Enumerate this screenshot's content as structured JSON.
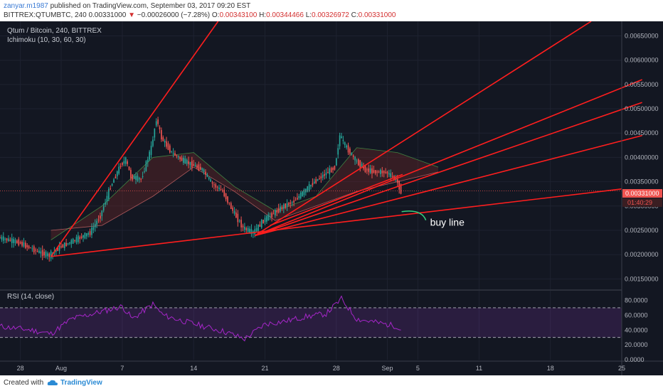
{
  "header": {
    "author": "zanyar.m1987",
    "published": "published on TradingView.com, September 03, 2017 09:20 EST",
    "symbol_line": "BITTREX:QTUMBTC, 240",
    "last": "0.00331000",
    "change": "−0.00026000 (−7.28%)",
    "o_label": "O:",
    "o": "0.00343100",
    "h_label": "H:",
    "h": "0.00344466",
    "l_label": "L:",
    "l": "0.00326972",
    "c_label": "C:",
    "c": "0.00331000"
  },
  "footer": {
    "created": "Created with",
    "brand": "TradingView"
  },
  "colors": {
    "bg": "#131722",
    "grid": "#1e2230",
    "trend": "#ff1e1e",
    "up": "#26a69a",
    "down": "#ef5350",
    "rsi": "#a626c9"
  },
  "chart_data": [
    {
      "type": "candlestick",
      "title": "Qtum / Bitcoin, 240, BITTREX",
      "indicator": "Ichimoku (10, 30, 60, 30)",
      "x_tick_labels": [
        "28",
        "Aug",
        "7",
        "14",
        "21",
        "28",
        "Sep",
        "5",
        "11",
        "18",
        "25"
      ],
      "x_tick_days": [
        -3,
        1,
        7,
        14,
        21,
        28,
        33,
        36,
        42,
        49,
        56
      ],
      "x_range_days": [
        -5,
        56
      ],
      "y_tick_labels": [
        "0.00650000",
        "0.00600000",
        "0.00550000",
        "0.00500000",
        "0.00450000",
        "0.00400000",
        "0.00350000",
        "0.00300000",
        "0.00250000",
        "0.00200000",
        "0.00150000"
      ],
      "ylim": [
        0.0013,
        0.0068
      ],
      "last_price": "0.00331000",
      "countdown": "01:40:29",
      "price_path": [
        [
          -5,
          0.00235
        ],
        [
          -3,
          0.00225
        ],
        [
          -1,
          0.00205
        ],
        [
          0,
          0.00198
        ],
        [
          1,
          0.00215
        ],
        [
          2,
          0.00225
        ],
        [
          3,
          0.00235
        ],
        [
          4,
          0.00245
        ],
        [
          5,
          0.0028
        ],
        [
          6,
          0.0034
        ],
        [
          7,
          0.00385
        ],
        [
          7.5,
          0.00395
        ],
        [
          8,
          0.0036
        ],
        [
          9,
          0.00355
        ],
        [
          10,
          0.0042
        ],
        [
          10.5,
          0.0048
        ],
        [
          11,
          0.0044
        ],
        [
          12,
          0.0041
        ],
        [
          13,
          0.00395
        ],
        [
          14,
          0.00385
        ],
        [
          15,
          0.00375
        ],
        [
          16,
          0.00345
        ],
        [
          17,
          0.0033
        ],
        [
          18,
          0.0029
        ],
        [
          19,
          0.00255
        ],
        [
          20,
          0.00245
        ],
        [
          21,
          0.0027
        ],
        [
          22,
          0.00285
        ],
        [
          23,
          0.003
        ],
        [
          24,
          0.0031
        ],
        [
          25,
          0.0033
        ],
        [
          26,
          0.0035
        ],
        [
          27,
          0.00365
        ],
        [
          28,
          0.0038
        ],
        [
          28.5,
          0.00445
        ],
        [
          29,
          0.00425
        ],
        [
          30,
          0.00395
        ],
        [
          31,
          0.00375
        ],
        [
          32,
          0.0037
        ],
        [
          33,
          0.0037
        ],
        [
          34,
          0.00355
        ],
        [
          34.5,
          0.00331
        ]
      ],
      "cloud_path_a": [
        [
          0,
          0.0023
        ],
        [
          5,
          0.003
        ],
        [
          10,
          0.004
        ],
        [
          14,
          0.0041
        ],
        [
          18,
          0.0034
        ],
        [
          22,
          0.0029
        ],
        [
          26,
          0.0032
        ],
        [
          30,
          0.0042
        ],
        [
          34,
          0.0041
        ],
        [
          38,
          0.0038
        ]
      ],
      "cloud_path_b": [
        [
          0,
          0.0025
        ],
        [
          5,
          0.0026
        ],
        [
          10,
          0.0032
        ],
        [
          14,
          0.0038
        ],
        [
          18,
          0.0033
        ],
        [
          22,
          0.0027
        ],
        [
          26,
          0.003
        ],
        [
          30,
          0.0033
        ],
        [
          34,
          0.0035
        ],
        [
          38,
          0.0037
        ]
      ],
      "trendlines": [
        [
          [
            0,
            0.00196
          ],
          [
            56,
            0.00335
          ]
        ],
        [
          [
            0,
            0.00196
          ],
          [
            16.4,
            0.0068
          ]
        ],
        [
          [
            20,
            0.00239
          ],
          [
            53,
            0.0068
          ]
        ],
        [
          [
            20,
            0.00239
          ],
          [
            58,
            0.0056
          ]
        ],
        [
          [
            20,
            0.00239
          ],
          [
            58,
            0.00513
          ]
        ],
        [
          [
            20,
            0.00239
          ],
          [
            58,
            0.00445
          ]
        ],
        [
          [
            21.5,
            0.0026
          ],
          [
            34.5,
            0.00365
          ]
        ]
      ],
      "annotation": {
        "text": "buy line",
        "day": 36.5,
        "price": 0.00265
      }
    },
    {
      "type": "line",
      "title": "RSI (14, close)",
      "y_tick_labels": [
        "80.0000",
        "60.0000",
        "40.0000",
        "20.0000",
        "0.0000"
      ],
      "ylim": [
        0,
        92
      ],
      "bands": [
        30,
        70
      ],
      "rsi_path": [
        [
          -5,
          45
        ],
        [
          -2,
          40
        ],
        [
          0,
          35
        ],
        [
          2,
          55
        ],
        [
          5,
          65
        ],
        [
          7,
          72
        ],
        [
          8,
          55
        ],
        [
          10,
          75
        ],
        [
          11,
          60
        ],
        [
          13,
          52
        ],
        [
          15,
          45
        ],
        [
          17,
          38
        ],
        [
          19,
          28
        ],
        [
          21,
          48
        ],
        [
          23,
          52
        ],
        [
          25,
          58
        ],
        [
          27,
          62
        ],
        [
          28.5,
          82
        ],
        [
          30,
          55
        ],
        [
          32,
          50
        ],
        [
          34,
          45
        ],
        [
          34.5,
          38
        ]
      ]
    }
  ]
}
